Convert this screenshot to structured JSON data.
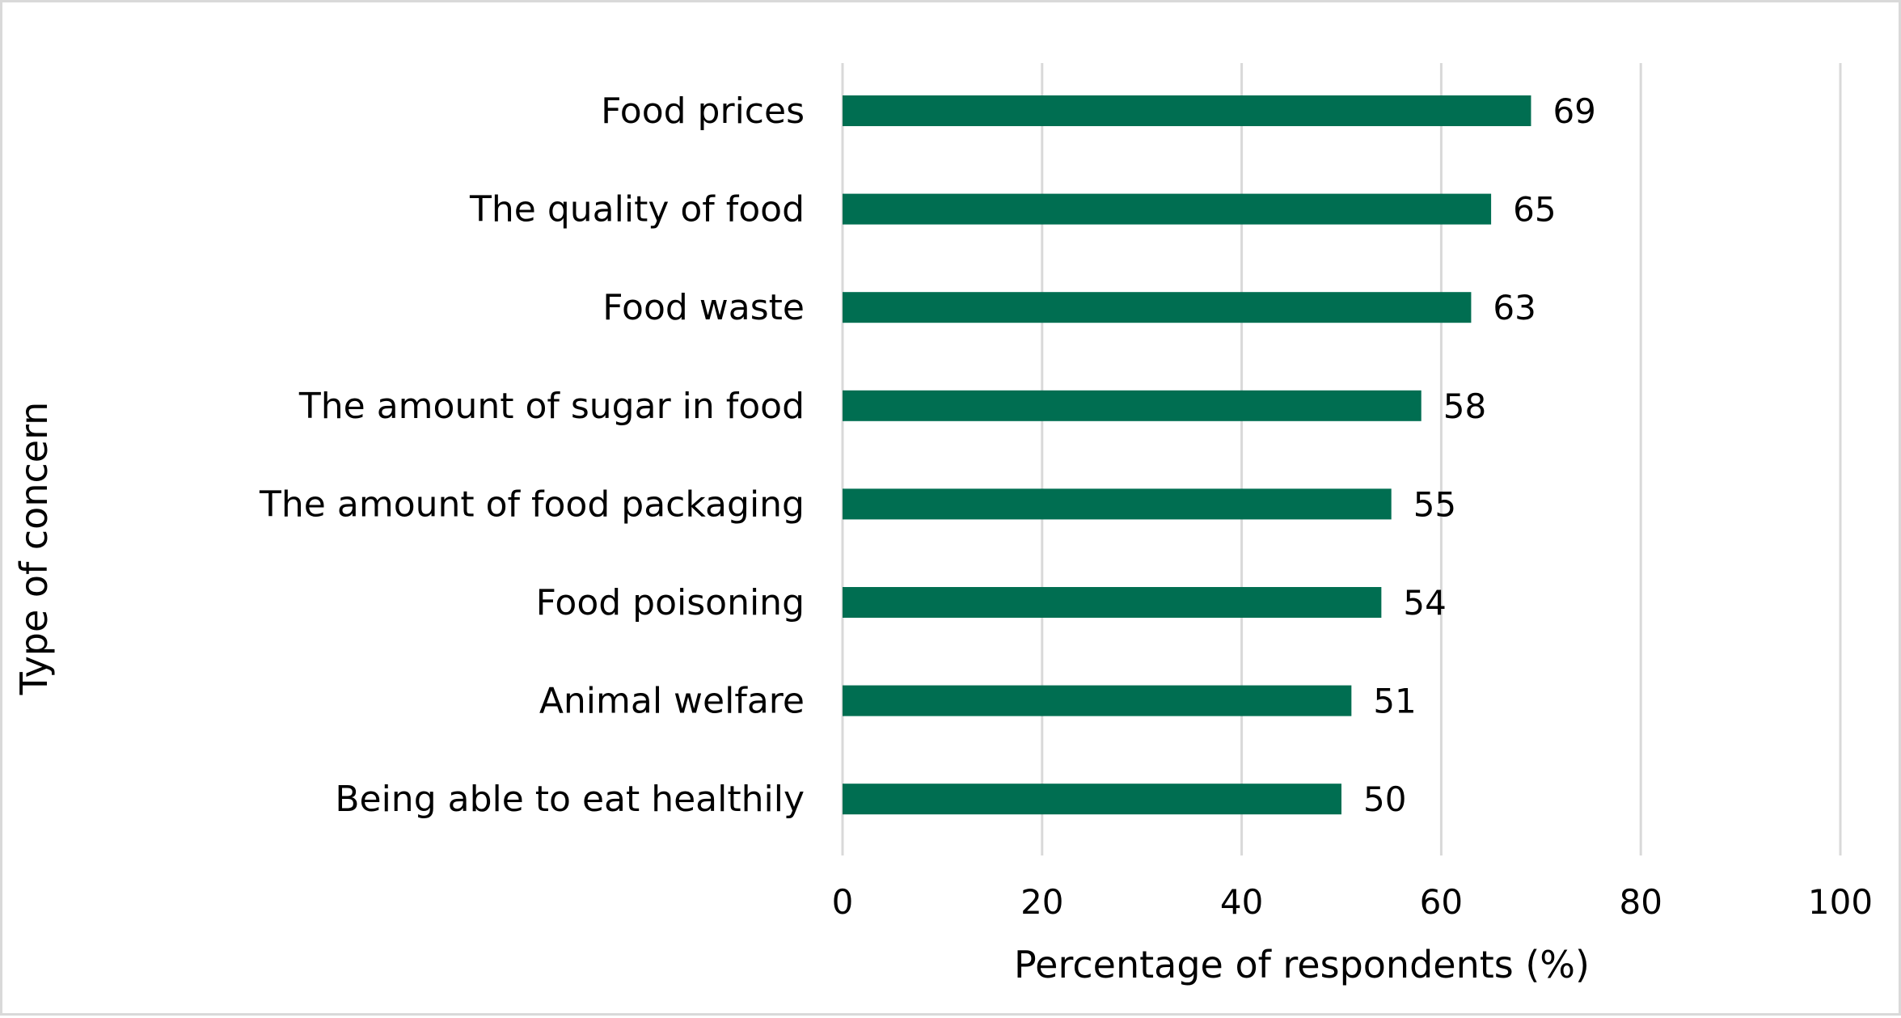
{
  "chart_data": {
    "type": "bar",
    "orientation": "horizontal",
    "title": "",
    "categories": [
      "Food prices",
      "The quality of food",
      "Food waste",
      "The amount of sugar in food",
      "The amount of food packaging",
      "Food poisoning",
      "Animal welfare",
      "Being able to eat healthily"
    ],
    "values": [
      69,
      65,
      63,
      58,
      55,
      54,
      51,
      50
    ],
    "xlabel": "Percentage of respondents (%)",
    "ylabel": "Type of concern",
    "xlim": [
      0,
      100
    ],
    "xticks": [
      0,
      20,
      40,
      60,
      80,
      100
    ],
    "xtick_labels": [
      "0",
      "20",
      "40",
      "60",
      "80",
      "100"
    ],
    "grid": true,
    "data_labels": true,
    "legend": "none",
    "bar_color": "#006e51",
    "grid_color": "#d9d9d9"
  }
}
